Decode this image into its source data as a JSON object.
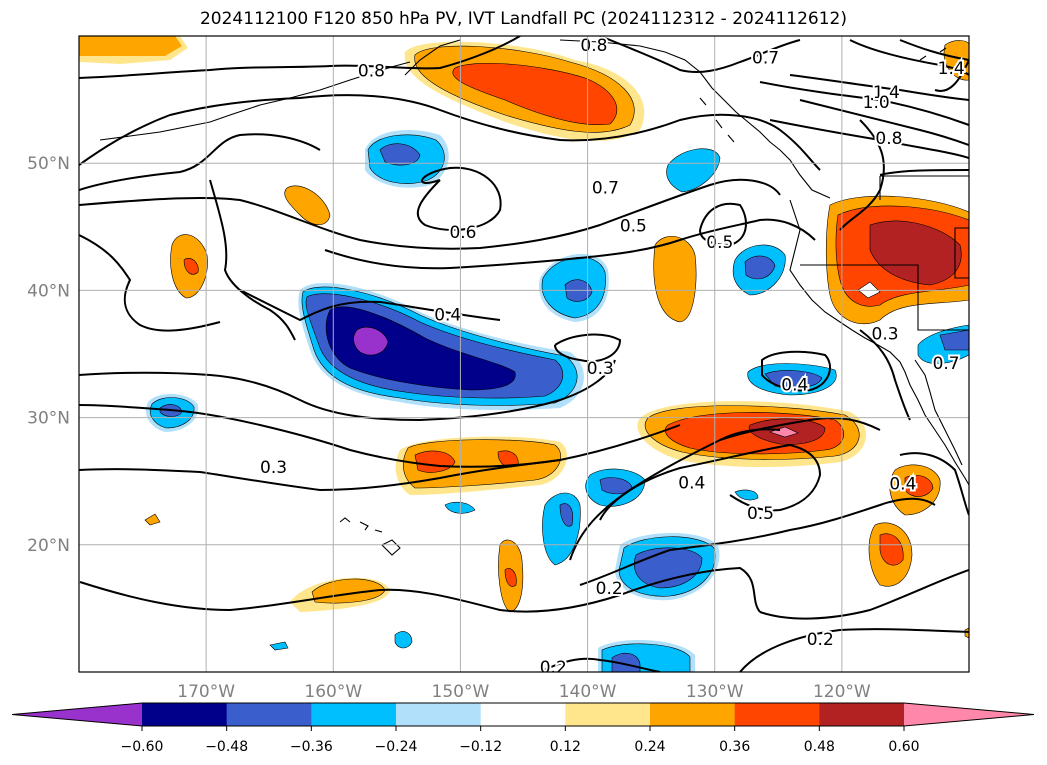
{
  "title": "2024112100 F120 850 hPa PV, IVT Landfall PC (2024112312 - 2024112612)",
  "map": {
    "lon_range": [
      -180,
      -110
    ],
    "lat_range": [
      10,
      60
    ],
    "lon_ticks": [
      {
        "lon": -170,
        "label": "170°W"
      },
      {
        "lon": -160,
        "label": "160°W"
      },
      {
        "lon": -150,
        "label": "150°W"
      },
      {
        "lon": -140,
        "label": "140°W"
      },
      {
        "lon": -130,
        "label": "130°W"
      },
      {
        "lon": -120,
        "label": "120°W"
      }
    ],
    "lat_ticks": [
      {
        "lat": 20,
        "label": "20°N"
      },
      {
        "lat": 30,
        "label": "30°N"
      },
      {
        "lat": 40,
        "label": "40°N"
      },
      {
        "lat": 50,
        "label": "50°N"
      }
    ],
    "grid": true,
    "tick_label_color": "#808080"
  },
  "contour_labels": [
    {
      "text": "0.8",
      "lon": -157,
      "lat": 57.3
    },
    {
      "text": "0.8",
      "lon": -139.5,
      "lat": 59.3
    },
    {
      "text": "0.7",
      "lon": -126,
      "lat": 58.3
    },
    {
      "text": "1.4",
      "lon": -116.5,
      "lat": 55.6
    },
    {
      "text": "1.0",
      "lon": -117.3,
      "lat": 54.8
    },
    {
      "text": "0.8",
      "lon": -116.3,
      "lat": 52
    },
    {
      "text": "1.4",
      "lon": -111.4,
      "lat": 57.5
    },
    {
      "text": "0.7",
      "lon": -138.6,
      "lat": 48.1
    },
    {
      "text": "0.6",
      "lon": -149.8,
      "lat": 44.6
    },
    {
      "text": "0.5",
      "lon": -136.4,
      "lat": 45.1
    },
    {
      "text": "0.5",
      "lon": -129.6,
      "lat": 43.8
    },
    {
      "text": "0.4",
      "lon": -151,
      "lat": 38.1
    },
    {
      "text": "0.3",
      "lon": -139,
      "lat": 33.9
    },
    {
      "text": "0.3",
      "lon": -116.6,
      "lat": 36.6
    },
    {
      "text": "0.4",
      "lon": -123.7,
      "lat": 32.6
    },
    {
      "text": "0.7",
      "lon": -111.8,
      "lat": 34.3
    },
    {
      "text": "0.3",
      "lon": -164.7,
      "lat": 26.1
    },
    {
      "text": "0.4",
      "lon": -131.8,
      "lat": 24.9
    },
    {
      "text": "0.5",
      "lon": -126.4,
      "lat": 22.5
    },
    {
      "text": "0.4",
      "lon": -115.2,
      "lat": 24.8
    },
    {
      "text": "0.2",
      "lon": -138.3,
      "lat": 16.6
    },
    {
      "text": "0.2",
      "lon": -121.7,
      "lat": 12.6
    },
    {
      "text": "0.2",
      "lon": -142.7,
      "lat": 10.4
    }
  ],
  "colorbar": {
    "ticks": [
      "−0.60",
      "−0.48",
      "−0.36",
      "−0.24",
      "−0.12",
      "0.12",
      "0.24",
      "0.36",
      "0.48",
      "0.60"
    ],
    "bins": [
      {
        "color": "#9932cc"
      },
      {
        "color": "#00008b"
      },
      {
        "color": "#3a5fcd"
      },
      {
        "color": "#00bfff"
      },
      {
        "color": "#b0e0fa"
      },
      {
        "color": "#ffffff"
      },
      {
        "color": "#ffe68c"
      },
      {
        "color": "#ffa500"
      },
      {
        "color": "#ff4500"
      },
      {
        "color": "#b22222"
      },
      {
        "color": "#ff88aa"
      }
    ]
  }
}
